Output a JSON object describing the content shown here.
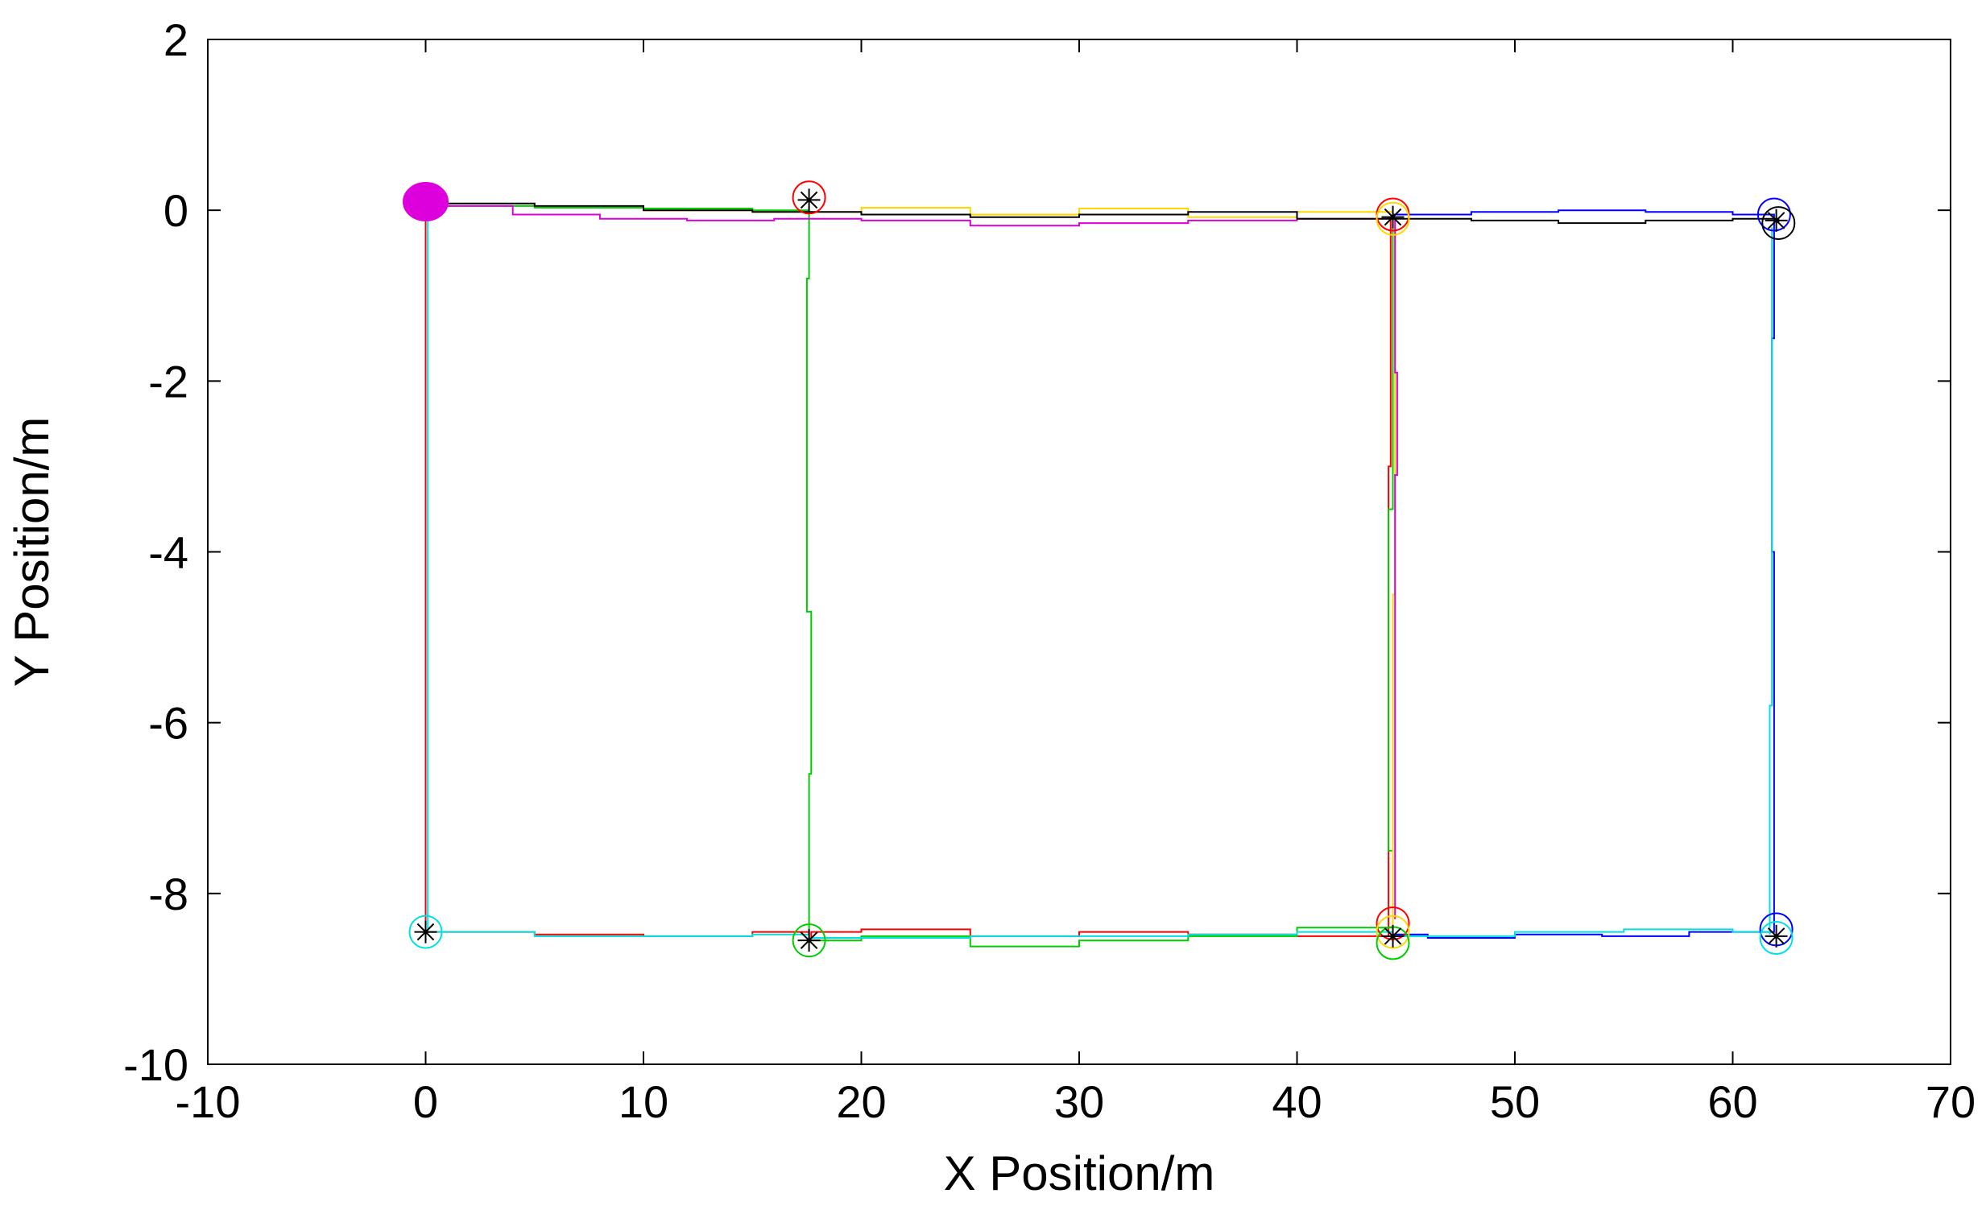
{
  "chart_data": {
    "type": "line",
    "title": "",
    "xlabel": "X Position/m",
    "ylabel": "Y Position/m",
    "xlim": [
      -10,
      70
    ],
    "ylim": [
      -10,
      2
    ],
    "xticks": [
      "-10",
      "0",
      "10",
      "20",
      "30",
      "40",
      "50",
      "60",
      "70"
    ],
    "yticks": [
      "2",
      "0",
      "-2",
      "-4",
      "-6",
      "-8",
      "-10"
    ],
    "grid": false,
    "legend": "none",
    "start_marker": {
      "x": 0,
      "y": 0.1,
      "color": "#dd00dd"
    },
    "landmarks_asterisk": [
      {
        "x": 0,
        "y": -8.45
      },
      {
        "x": 17.6,
        "y": 0.12
      },
      {
        "x": 17.6,
        "y": -8.55
      },
      {
        "x": 44.4,
        "y": -0.08
      },
      {
        "x": 44.4,
        "y": -8.5
      },
      {
        "x": 62,
        "y": -0.12
      },
      {
        "x": 62,
        "y": -8.5
      }
    ],
    "circles": [
      {
        "x": 0,
        "y": -8.45,
        "color": "#00e0e0"
      },
      {
        "x": 17.6,
        "y": 0.15,
        "color": "#ff0000"
      },
      {
        "x": 17.6,
        "y": -8.55,
        "color": "#00cc00"
      },
      {
        "x": 44.4,
        "y": -0.05,
        "color": "#ff0000"
      },
      {
        "x": 44.4,
        "y": -0.1,
        "color": "#ffd700"
      },
      {
        "x": 44.4,
        "y": -8.35,
        "color": "#ff0000"
      },
      {
        "x": 44.4,
        "y": -8.45,
        "color": "#ffd700"
      },
      {
        "x": 44.4,
        "y": -8.58,
        "color": "#00cc00"
      },
      {
        "x": 61.9,
        "y": -0.05,
        "color": "#0000ff"
      },
      {
        "x": 62.1,
        "y": -0.15,
        "color": "#000000"
      },
      {
        "x": 62.0,
        "y": -8.42,
        "color": "#0000ff"
      },
      {
        "x": 62.0,
        "y": -8.52,
        "color": "#00e0e0"
      }
    ],
    "series": [
      {
        "color": "#ff0000",
        "x": [
          0,
          0,
          0,
          0,
          0,
          5,
          10,
          15,
          17.6,
          17.7,
          20,
          25,
          30,
          35,
          40,
          44.2,
          44.2,
          44.2,
          44.3,
          44.3
        ],
        "y": [
          0.05,
          -0.5,
          -3.7,
          -6.8,
          -8.45,
          -8.48,
          -8.5,
          -8.45,
          -8.52,
          -8.45,
          -8.42,
          -8.5,
          -8.45,
          -8.48,
          -8.5,
          -8.45,
          -6.5,
          -3.0,
          -0.5,
          -0.08
        ]
      },
      {
        "color": "#00cc00",
        "x": [
          0.3,
          5,
          10,
          15,
          17.6,
          17.6,
          17.5,
          17.7,
          17.6,
          20,
          25,
          30,
          35,
          40,
          44.4,
          44.4,
          44.2,
          44.4,
          44.4
        ],
        "y": [
          0.05,
          0.03,
          0.02,
          0.0,
          0.05,
          -0.8,
          -4.7,
          -6.6,
          -8.55,
          -8.5,
          -8.62,
          -8.55,
          -8.5,
          -8.4,
          -8.55,
          -7.5,
          -3.5,
          -1.5,
          -0.05
        ]
      },
      {
        "color": "#ffd700",
        "x": [
          10,
          15,
          20,
          25,
          30,
          35,
          40,
          44.4,
          44.5,
          44.5,
          44.4
        ],
        "y": [
          0.0,
          -0.02,
          0.03,
          -0.05,
          0.02,
          -0.08,
          -0.02,
          -0.1,
          -1.5,
          -4.5,
          -8.45
        ]
      },
      {
        "color": "#dd00dd",
        "x": [
          0.3,
          4,
          8,
          12,
          16,
          20,
          25,
          30,
          35,
          40,
          44.5,
          44.5,
          44.6,
          44.5
        ],
        "y": [
          0.05,
          -0.05,
          -0.1,
          -0.12,
          -0.1,
          -0.12,
          -0.18,
          -0.15,
          -0.12,
          -0.1,
          -0.1,
          -1.9,
          -3.1,
          -8.3
        ]
      },
      {
        "color": "#000000",
        "x": [
          0.5,
          5,
          10,
          15,
          20,
          25,
          30,
          35,
          40,
          44.4,
          48,
          52,
          56,
          60,
          62.1
        ],
        "y": [
          0.08,
          0.05,
          0.0,
          -0.02,
          -0.05,
          -0.08,
          -0.05,
          -0.02,
          -0.1,
          -0.1,
          -0.12,
          -0.15,
          -0.12,
          -0.1,
          -0.15
        ]
      },
      {
        "color": "#0000ff",
        "x": [
          44.4,
          48,
          52,
          56,
          60,
          61.9,
          61.9,
          61.8,
          61.9,
          61.9,
          58,
          54,
          50,
          46,
          44.4
        ],
        "y": [
          -0.05,
          -0.02,
          0.0,
          -0.02,
          -0.05,
          -0.05,
          -1.5,
          -4.0,
          -6.8,
          -8.45,
          -8.5,
          -8.48,
          -8.52,
          -8.48,
          -8.5
        ]
      },
      {
        "color": "#00e0e0",
        "x": [
          0.2,
          0.1,
          0.1,
          0.1,
          0.1,
          5,
          10,
          15,
          17.6,
          25,
          30,
          35,
          40,
          44.4,
          50,
          55,
          60,
          61.7,
          61.7,
          61.8
        ],
        "y": [
          0.1,
          -1.8,
          -4.2,
          -6.3,
          -8.45,
          -8.5,
          -8.5,
          -8.48,
          -8.52,
          -8.5,
          -8.5,
          -8.48,
          -8.45,
          -8.5,
          -8.45,
          -8.42,
          -8.45,
          -8.48,
          -5.8,
          -0.2
        ]
      }
    ]
  }
}
